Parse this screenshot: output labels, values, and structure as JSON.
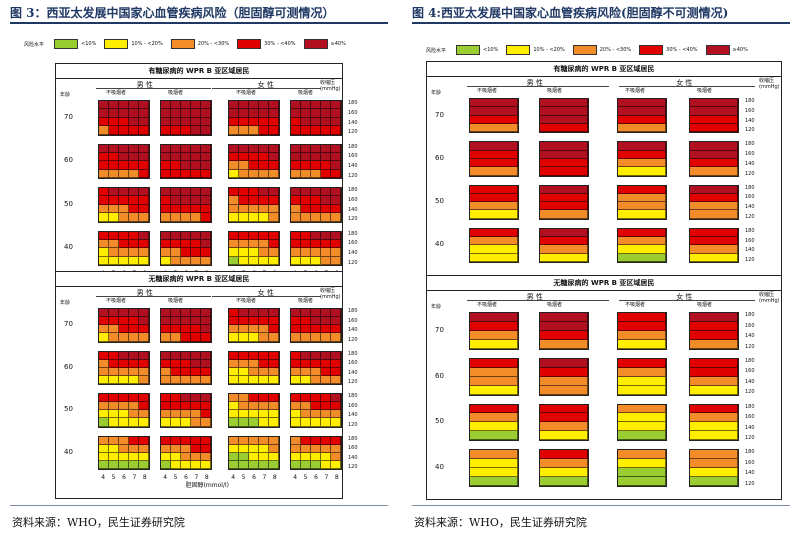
{
  "colors": {
    "c1": "#9acd32",
    "c2": "#ffee00",
    "c3": "#f28c28",
    "c4": "#e00000",
    "c5": "#b01020"
  },
  "left": {
    "title": "图 3：西亚太发展中国家心血管疾病风险（胆固醇可测情况）",
    "source": "资料来源：WHO，民生证券研究院",
    "legend": {
      "title": "风险水平",
      "items": [
        "<10%",
        "10% - <20%",
        "20% - <30%",
        "30% - <40%",
        "≥40%"
      ]
    },
    "blocks": [
      {
        "title": "有糖尿病的 WPR B 亚区域居民",
        "male": "男 性",
        "female": "女 性",
        "smoke_no": "不吸烟者",
        "smoke_yes": "吸烟者",
        "bp_label": "收缩压 (mmHg)",
        "age_label": "年龄",
        "ages": [
          "70",
          "60",
          "50",
          "40"
        ],
        "bp": [
          "180",
          "160",
          "140",
          "120"
        ],
        "chol": [
          "4",
          "5",
          "6",
          "7",
          "8"
        ],
        "chol_label": "胆固醇(mmol/l)"
      },
      {
        "title": "无糖尿病的 WPR B 亚区域居民",
        "male": "男 性",
        "female": "女 性",
        "smoke_no": "不吸烟者",
        "smoke_yes": "吸烟者",
        "bp_label": "收缩压 (mmHg)",
        "age_label": "年龄",
        "ages": [
          "70",
          "60",
          "50",
          "40"
        ],
        "bp": [
          "180",
          "160",
          "140",
          "120"
        ],
        "chol": [
          "4",
          "5",
          "6",
          "7",
          "8"
        ],
        "chol_label": "胆固醇(mmol/l)"
      }
    ]
  },
  "right": {
    "title": "图 4:西亚太发展中国家心血管疾病风险(胆固醇不可测情况)",
    "source": "资料来源：WHO，民生证券研究院",
    "legend": {
      "title": "风险水平",
      "items": [
        "<10%",
        "10% - <20%",
        "20% - <30%",
        "30% - <40%",
        "≥40%"
      ]
    },
    "blocks": [
      {
        "title": "有糖尿病的 WPR B 亚区域居民",
        "male": "男 性",
        "female": "女 性",
        "smoke_no": "不吸烟者",
        "smoke_yes": "吸烟者",
        "bp_label": "收缩压 (mmHg)",
        "age_label": "年龄",
        "ages": [
          "70",
          "60",
          "50",
          "40"
        ],
        "bp": [
          "180",
          "160",
          "140",
          "120"
        ]
      },
      {
        "title": "无糖尿病的 WPR B 亚区域居民",
        "male": "男 性",
        "female": "女 性",
        "smoke_no": "不吸烟者",
        "smoke_yes": "吸烟者",
        "bp_label": "收缩压 (mmHg)",
        "age_label": "年龄",
        "ages": [
          "70",
          "60",
          "50",
          "40"
        ],
        "bp": [
          "180",
          "160",
          "140",
          "120"
        ]
      }
    ]
  }
}
